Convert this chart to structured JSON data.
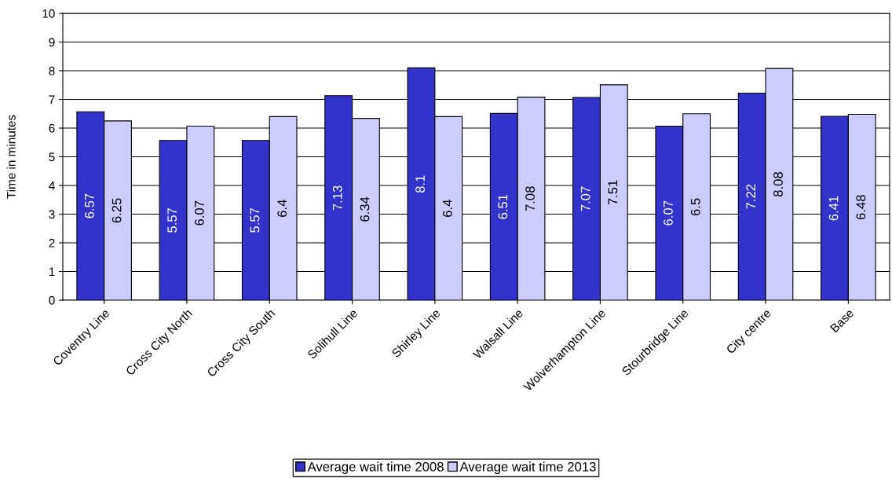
{
  "chart_data": {
    "type": "bar",
    "ylabel": "Time in minutes",
    "categories": [
      "Coventry Line",
      "Cross City North",
      "Cross City South",
      "Solihull Line",
      "Shirley Line",
      "Walsall Line",
      "Wolverhampton Line",
      "Stourbridge Line",
      "City centre",
      "Base"
    ],
    "series": [
      {
        "name": "Average wait time 2008",
        "color": "#3333cc",
        "values": [
          6.57,
          5.57,
          5.57,
          7.13,
          8.1,
          6.51,
          7.07,
          6.07,
          7.22,
          6.41
        ]
      },
      {
        "name": "Average wait time 2013",
        "color": "#ccccff",
        "values": [
          6.25,
          6.07,
          6.4,
          6.34,
          6.4,
          7.08,
          7.51,
          6.5,
          8.08,
          6.48
        ]
      }
    ],
    "ylim": [
      0,
      10
    ],
    "yticks": [
      0,
      1,
      2,
      3,
      4,
      5,
      6,
      7,
      8,
      9,
      10
    ],
    "grid": "y",
    "legend": "bottom",
    "data_labels": true
  }
}
